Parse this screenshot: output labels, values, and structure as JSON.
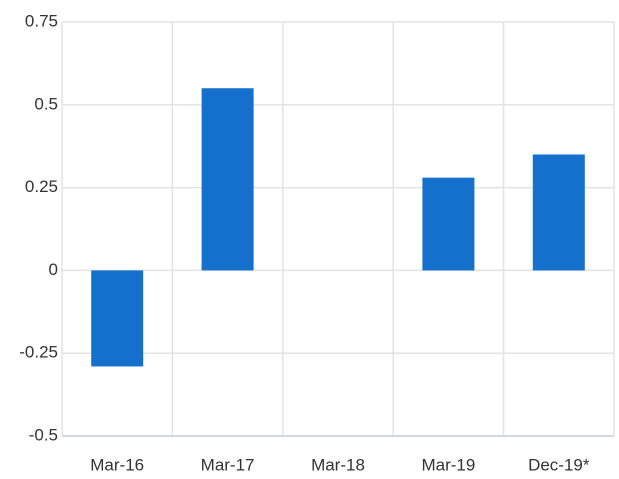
{
  "chart_data": {
    "type": "bar",
    "categories": [
      "Mar-16",
      "Mar-17",
      "Mar-18",
      "Mar-19",
      "Dec-19*"
    ],
    "values": [
      -0.29,
      0.55,
      0,
      0.28,
      0.35
    ],
    "color": "#1470cc",
    "ylim": [
      -0.5,
      0.75
    ],
    "yticks": [
      -0.5,
      -0.25,
      0,
      0.25,
      0.5,
      0.75
    ],
    "grid": true
  }
}
